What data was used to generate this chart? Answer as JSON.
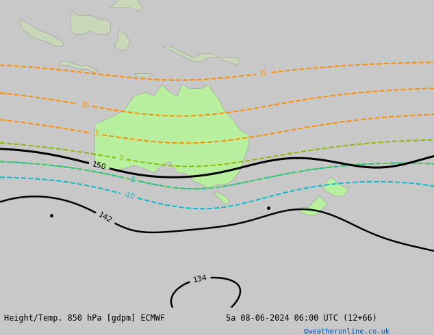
{
  "title_left": "Height/Temp. 850 hPa [gdpm] ECMWF",
  "title_right": "Sa 08-06-2024 06:00 UTC (12+66)",
  "credit": "©weatheronline.co.uk",
  "figsize": [
    6.34,
    4.9
  ],
  "dpi": 100,
  "ocean_color": "#c8d0d8",
  "australia_color": "#b8f0a0",
  "land_color": "#c8d8b8",
  "bottom_bar_color": "#e0e0e0"
}
